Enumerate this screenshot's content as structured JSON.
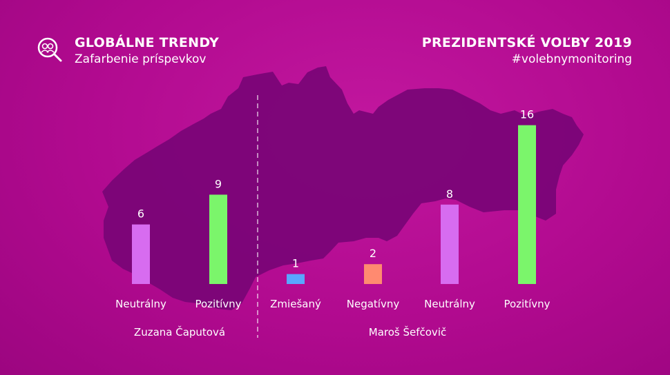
{
  "header": {
    "left_title": "GLOBÁLNE TRENDY",
    "left_subtitle": "Zafarbenie príspevkov",
    "right_title": "PREZIDENTSKÉ VOĽBY 2019",
    "right_subtitle": "#volebnymonitoring",
    "logo_icon": "magnifier-people-icon"
  },
  "colors": {
    "background": "#b10a8f",
    "map": "#7a0577",
    "neutral": "#d76cf0",
    "positive": "#7bf56b",
    "mixed": "#5aa6ff",
    "negative": "#ff8a70"
  },
  "chart_data": {
    "type": "bar",
    "groups": [
      {
        "name": "Zuzana Čaputová",
        "bars": [
          {
            "category": "Neutrálny",
            "value": 6,
            "color": "#d76cf0"
          },
          {
            "category": "Pozitívny",
            "value": 9,
            "color": "#7bf56b"
          }
        ]
      },
      {
        "name": "Maroš Šefčovič",
        "bars": [
          {
            "category": "Zmiešaný",
            "value": 1,
            "color": "#5aa6ff"
          },
          {
            "category": "Negatívny",
            "value": 2,
            "color": "#ff8a70"
          },
          {
            "category": "Neutrálny",
            "value": 8,
            "color": "#d76cf0"
          },
          {
            "category": "Pozitívny",
            "value": 16,
            "color": "#7bf56b"
          }
        ]
      }
    ],
    "ylim": [
      0,
      16
    ],
    "grid": false
  }
}
